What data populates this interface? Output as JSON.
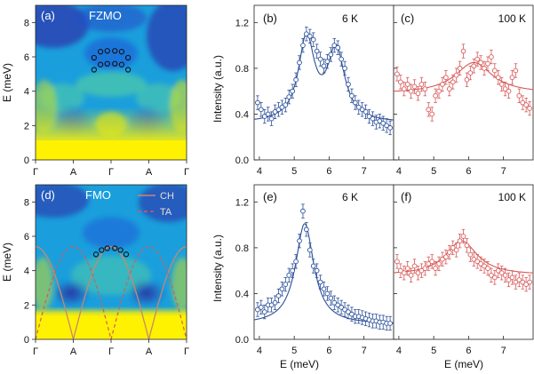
{
  "chart_data": [
    {
      "id": "a",
      "type": "heatmap",
      "label": "(a)",
      "title": "FZMO",
      "ylabel": "E (meV)",
      "ylim": [
        0,
        9
      ],
      "yticks": [
        0,
        2,
        4,
        6,
        8
      ],
      "xticks": [
        "Γ",
        "A",
        "Γ",
        "A",
        "Γ"
      ],
      "colormap": [
        "#2a2a9c",
        "#1f64d8",
        "#1aa8e0",
        "#4ecba8",
        "#d8e21c",
        "#fff200"
      ],
      "markers": {
        "upper": [
          [
            1.55,
            5.95
          ],
          [
            1.72,
            6.3
          ],
          [
            1.9,
            6.35
          ],
          [
            2.1,
            6.35
          ],
          [
            2.28,
            6.3
          ],
          [
            2.45,
            5.95
          ]
        ],
        "lower": [
          [
            1.55,
            5.25
          ],
          [
            1.72,
            5.55
          ],
          [
            1.9,
            5.6
          ],
          [
            2.1,
            5.6
          ],
          [
            2.28,
            5.55
          ],
          [
            2.45,
            5.25
          ]
        ]
      },
      "legend": []
    },
    {
      "id": "d",
      "type": "heatmap",
      "label": "(d)",
      "title": "FMO",
      "ylabel": "E (meV)",
      "ylim": [
        0,
        9
      ],
      "yticks": [
        0,
        2,
        4,
        6,
        8
      ],
      "xticks": [
        "Γ",
        "A",
        "Γ",
        "A",
        "Γ"
      ],
      "colormap": [
        "#2a2a9c",
        "#1f64d8",
        "#1aa8e0",
        "#4ecba8",
        "#d8e21c",
        "#fff200"
      ],
      "markers": {
        "upper": [
          [
            1.6,
            4.95
          ],
          [
            1.75,
            5.2
          ],
          [
            1.9,
            5.3
          ],
          [
            2.1,
            5.3
          ],
          [
            2.25,
            5.2
          ],
          [
            2.4,
            4.95
          ]
        ]
      },
      "legend": [
        {
          "name": "CH",
          "color": "#c9876e",
          "style": "solid"
        },
        {
          "name": "TA",
          "color": "#d85a5a",
          "style": "dashed"
        }
      ]
    },
    {
      "id": "b",
      "type": "scatter",
      "label": "(b)",
      "annotation": "6 K",
      "ylabel": "Intensity (a.u.)",
      "xlim": [
        3.85,
        7.85
      ],
      "ylim": [
        0,
        1.35
      ],
      "xticks": [
        4,
        5,
        6,
        7
      ],
      "yticks": [
        0.0,
        0.4,
        0.8,
        1.2
      ],
      "color": "#2b4f98",
      "points_x": [
        3.95,
        4.05,
        4.15,
        4.25,
        4.35,
        4.45,
        4.55,
        4.65,
        4.75,
        4.85,
        4.95,
        5.05,
        5.15,
        5.25,
        5.35,
        5.45,
        5.55,
        5.65,
        5.75,
        5.85,
        5.95,
        6.05,
        6.15,
        6.25,
        6.35,
        6.45,
        6.55,
        6.65,
        6.75,
        6.85,
        6.95,
        7.05,
        7.15,
        7.25,
        7.35,
        7.45,
        7.55,
        7.65,
        7.75
      ],
      "points_y": [
        0.5,
        0.44,
        0.38,
        0.4,
        0.36,
        0.42,
        0.44,
        0.46,
        0.48,
        0.55,
        0.6,
        0.7,
        0.85,
        1.0,
        1.1,
        1.08,
        1.05,
        0.95,
        0.88,
        0.82,
        0.86,
        0.92,
        1.0,
        0.98,
        0.88,
        0.8,
        0.66,
        0.56,
        0.5,
        0.46,
        0.44,
        0.42,
        0.38,
        0.36,
        0.33,
        0.34,
        0.32,
        0.3,
        0.28
      ],
      "fit": {
        "base": 0.32,
        "peaks": [
          {
            "a": 0.72,
            "x0": 5.35,
            "w": 0.28
          },
          {
            "a": 0.62,
            "x0": 6.2,
            "w": 0.3
          }
        ]
      }
    },
    {
      "id": "c",
      "type": "scatter",
      "label": "(c)",
      "annotation": "100 K",
      "xlim": [
        3.85,
        7.85
      ],
      "ylim": [
        0,
        1.35
      ],
      "xticks": [
        4,
        5,
        6,
        7
      ],
      "yticks": [
        0.0,
        0.4,
        0.8,
        1.2
      ],
      "color": "#d85a5a",
      "points_x": [
        3.95,
        4.05,
        4.15,
        4.25,
        4.35,
        4.45,
        4.55,
        4.65,
        4.75,
        4.85,
        4.95,
        5.05,
        5.15,
        5.25,
        5.35,
        5.45,
        5.55,
        5.65,
        5.75,
        5.85,
        5.95,
        6.05,
        6.15,
        6.25,
        6.35,
        6.45,
        6.55,
        6.65,
        6.75,
        6.85,
        6.95,
        7.05,
        7.15,
        7.25,
        7.35,
        7.45,
        7.55,
        7.65,
        7.75
      ],
      "points_y": [
        0.75,
        0.68,
        0.62,
        0.66,
        0.6,
        0.64,
        0.58,
        0.66,
        0.62,
        0.44,
        0.4,
        0.56,
        0.6,
        0.66,
        0.72,
        0.62,
        0.68,
        0.74,
        0.8,
        0.95,
        0.7,
        0.76,
        0.82,
        0.88,
        0.85,
        0.8,
        0.84,
        0.9,
        0.78,
        0.72,
        0.66,
        0.62,
        0.6,
        0.72,
        0.78,
        0.56,
        0.5,
        0.48,
        0.45
      ],
      "fit": {
        "base": 0.58,
        "peaks": [
          {
            "a": 0.27,
            "x0": 6.15,
            "w": 0.65
          }
        ]
      }
    },
    {
      "id": "e",
      "type": "scatter",
      "label": "(e)",
      "annotation": "6 K",
      "ylabel": "Intensity (a.u.)",
      "xlabel": "E (meV)",
      "xlim": [
        3.85,
        7.85
      ],
      "ylim": [
        0,
        1.35
      ],
      "xticks": [
        4,
        5,
        6,
        7
      ],
      "yticks": [
        0.0,
        0.4,
        0.8,
        1.2
      ],
      "color": "#2b4f98",
      "points_x": [
        3.95,
        4.05,
        4.15,
        4.25,
        4.35,
        4.45,
        4.55,
        4.65,
        4.75,
        4.85,
        4.95,
        5.05,
        5.15,
        5.25,
        5.35,
        5.45,
        5.55,
        5.65,
        5.75,
        5.85,
        5.95,
        6.05,
        6.15,
        6.25,
        6.35,
        6.45,
        6.55,
        6.65,
        6.75,
        6.85,
        6.95,
        7.05,
        7.15,
        7.25,
        7.35,
        7.45,
        7.55,
        7.65,
        7.75
      ],
      "points_y": [
        0.26,
        0.28,
        0.24,
        0.3,
        0.3,
        0.32,
        0.38,
        0.44,
        0.48,
        0.56,
        0.6,
        0.68,
        0.86,
        1.12,
        0.96,
        0.78,
        0.64,
        0.6,
        0.5,
        0.44,
        0.4,
        0.36,
        0.32,
        0.3,
        0.28,
        0.26,
        0.24,
        0.22,
        0.2,
        0.2,
        0.19,
        0.18,
        0.17,
        0.16,
        0.16,
        0.15,
        0.15,
        0.14,
        0.14
      ],
      "fit": {
        "base": 0.13,
        "peaks": [
          {
            "a": 0.88,
            "x0": 5.3,
            "w": 0.32
          }
        ]
      }
    },
    {
      "id": "f",
      "type": "scatter",
      "label": "(f)",
      "annotation": "100 K",
      "xlabel": "E (meV)",
      "xlim": [
        3.85,
        7.85
      ],
      "ylim": [
        0,
        1.35
      ],
      "xticks": [
        4,
        5,
        6,
        7
      ],
      "yticks": [
        0.0,
        0.4,
        0.8,
        1.2
      ],
      "color": "#d85a5a",
      "points_x": [
        3.95,
        4.05,
        4.15,
        4.25,
        4.35,
        4.45,
        4.55,
        4.65,
        4.75,
        4.85,
        4.95,
        5.05,
        5.15,
        5.25,
        5.35,
        5.45,
        5.55,
        5.65,
        5.75,
        5.85,
        5.95,
        6.05,
        6.15,
        6.25,
        6.35,
        6.45,
        6.55,
        6.65,
        6.75,
        6.85,
        6.95,
        7.05,
        7.15,
        7.25,
        7.35,
        7.45,
        7.55,
        7.65,
        7.75
      ],
      "points_y": [
        0.68,
        0.6,
        0.58,
        0.62,
        0.56,
        0.64,
        0.58,
        0.6,
        0.62,
        0.66,
        0.68,
        0.62,
        0.66,
        0.7,
        0.72,
        0.76,
        0.8,
        0.78,
        0.86,
        0.9,
        0.82,
        0.74,
        0.7,
        0.68,
        0.66,
        0.64,
        0.62,
        0.56,
        0.54,
        0.6,
        0.58,
        0.56,
        0.52,
        0.54,
        0.5,
        0.52,
        0.5,
        0.48,
        0.5
      ],
      "fit": {
        "base": 0.56,
        "peaks": [
          {
            "a": 0.3,
            "x0": 5.8,
            "w": 0.55
          }
        ]
      }
    }
  ]
}
